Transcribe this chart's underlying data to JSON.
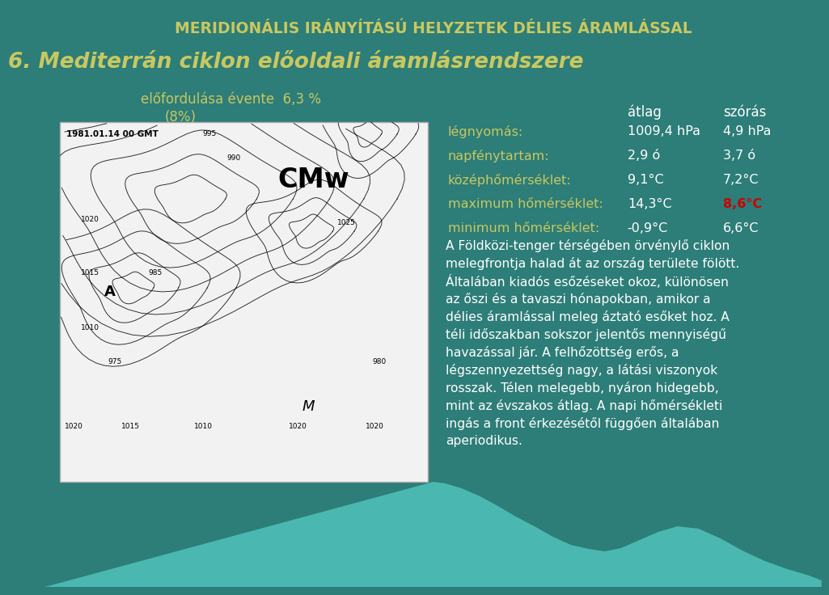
{
  "bg_color": "#2d7d78",
  "title_line1": "MERIDIONÁLIS IRÁNYÍTÁSÚ HELYZETEK DÉLIES ÁRAMLÁSSAL",
  "title_line2": "6. Mediterrán ciklon előoldali áramlásrendszere",
  "subtitle_line1": "előfordulása évente  6,3 %",
  "subtitle_line2": "(8%)",
  "atlag_label": "átlag",
  "szoras_label": "szórás",
  "rows": [
    {
      "label": "légnyomás:",
      "atlag": "1009,4 hPa",
      "szoras": "4,9 hPa",
      "szoras_color": "#ffffff"
    },
    {
      "label": "napfénytartam:",
      "atlag": "2,9 ó",
      "szoras": "3,7 ó",
      "szoras_color": "#ffffff"
    },
    {
      "label": "középhőmérséklet:",
      "atlag": "9,1°C",
      "szoras": "7,2°C",
      "szoras_color": "#ffffff"
    },
    {
      "label": "maximum hőmérséklet:",
      "atlag": "14,3°C",
      "szoras": "8,6°C",
      "szoras_color": "#cc0000"
    },
    {
      "label": "minimum hőmérséklet:",
      "atlag": "-0,9°C",
      "szoras": "6,6°C",
      "szoras_color": "#ffffff"
    }
  ],
  "body_text_lines": [
    "A Földközi-tenger térségében örvénylő ciklon",
    "melegfrontja halad át az ország területe fölött.",
    "Általában kiadós esőzéseket okoz, különösen",
    "az őszi és a tavaszi hónapokban, amikor a",
    "délies áramlással meleg áztató esőket hoz. A",
    "téli időszakban sokszor jelentős mennyiségű",
    "havazással jár. A felhőzöttség erős, a",
    "légszennyezettség nagy, a látási viszonyok",
    "rosszak. Télen melegebb, nyáron hidegebb,",
    "mint az évszakos átlag. A napi hőmérsékleti",
    "ingás a front érkezésétől függően általában",
    "aperiodikus."
  ],
  "title1_color": "#c8c860",
  "title2_color": "#c8c860",
  "subtitle_color": "#c8c860",
  "label_color": "#c8c860",
  "header_color": "#ffffff",
  "body_text_color": "#ffffff",
  "mountain_color": "#4ab8b0",
  "map_face_color": "#f2f2f2",
  "map_edge_color": "#aaaaaa"
}
